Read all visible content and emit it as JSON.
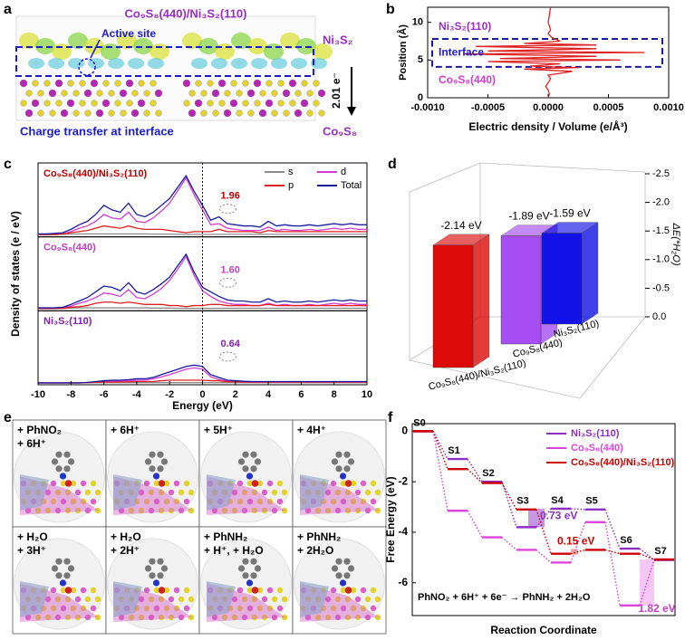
{
  "panel_a": {
    "panel": "a",
    "title": "Co₉S₈(440)/Ni₃S₂(110)",
    "active_site": "Active site",
    "top_phase": "Ni₃S₂",
    "transfer": "2.01 e⁻",
    "bottom_phase": "Co₉S₈",
    "caption": "Charge transfer at interface"
  },
  "panel_e": {
    "panel": "e",
    "steps": [
      [
        "+ PhNO₂",
        "+ 6H⁺"
      ],
      [
        "+ 6H⁺"
      ],
      [
        "+ 5H⁺"
      ],
      [
        "+ 4H⁺"
      ],
      [
        "+ H₂O",
        "+ 3H⁺"
      ],
      [
        "+ H₂O",
        "+ 2H⁺"
      ],
      [
        "+ PhNH₂",
        "+ H⁺, + H₂O"
      ],
      [
        "+ PhNH₂",
        "+ 2H₂O"
      ]
    ]
  },
  "chart_data": [
    {
      "type": "profile",
      "panel": "b",
      "xlabel": "Electric density / Volume (e/Å³)",
      "ylabel": "Position (Å)",
      "xlim": [
        -0.001,
        0.001
      ],
      "xticks": [
        {
          "value": -0.001,
          "label": "-0.0010"
        },
        {
          "value": -0.0005,
          "label": "-0.0005"
        },
        {
          "value": 0,
          "label": "0.0000"
        },
        {
          "value": 0.0005,
          "label": "0.0005"
        },
        {
          "value": 0.001,
          "label": "0.0010"
        }
      ],
      "ylim": [
        0,
        12
      ],
      "yticks": [
        0,
        5,
        10
      ],
      "y": [
        0,
        0.5,
        1,
        1.5,
        2,
        2.5,
        3,
        3.5,
        3.8,
        4,
        4.2,
        4.5,
        4.8,
        5,
        5.2,
        5.5,
        5.8,
        6,
        6.2,
        6.5,
        6.8,
        7,
        7.2,
        7.5,
        8,
        8.5,
        9,
        10,
        11,
        12
      ],
      "series": [
        {
          "color": "#e02020",
          "values": [
            0,
            1e-05,
            0,
            -2e-05,
            0,
            2e-05,
            0,
            0.0002,
            -0.0002,
            0.00025,
            -0.00015,
            0.0001,
            -0.0005,
            0.0006,
            -0.0004,
            0.0004,
            -0.0007,
            0.0008,
            -0.0005,
            0.0004,
            -0.0006,
            0.0004,
            -0.0002,
            0.0001,
            3e-05,
            0,
            2e-05,
            0,
            1e-05,
            2e-05
          ]
        }
      ],
      "annotations": [
        "Ni₃S₂(110)",
        "Interface",
        "Co₉S₈(440)"
      ]
    },
    {
      "type": "dos",
      "panel": "c",
      "xlabel": "Energy (eV)",
      "ylabel": "Density of states (e / eV)",
      "xlim": [
        -10,
        10
      ],
      "xticks": [
        -10,
        -8,
        -6,
        -4,
        -2,
        0,
        2,
        4,
        6,
        8,
        10
      ],
      "x": [
        -10,
        -9.5,
        -9,
        -8.5,
        -8,
        -7.5,
        -7,
        -6.5,
        -6,
        -5.5,
        -5,
        -4.5,
        -4,
        -3.5,
        -3,
        -2.5,
        -2,
        -1.5,
        -1,
        -0.5,
        0,
        0.5,
        1,
        1.5,
        2,
        2.5,
        3,
        3.5,
        4,
        4.5,
        5,
        5.5,
        6,
        6.5,
        7,
        7.5,
        8,
        8.5,
        9,
        9.5,
        10
      ],
      "series": [
        {
          "name": "s",
          "color": "#8c8c8c"
        },
        {
          "name": "d",
          "color": "#d23cd2"
        },
        {
          "name": "p",
          "color": "#e02020"
        },
        {
          "name": "Total",
          "color": "#1a1aa0"
        }
      ],
      "subplots": [
        {
          "title": "Co₉S₈(440)/Ni₃S₂(110)",
          "annotation": "1.96",
          "ylim": [
            0,
            6
          ],
          "values": [
            [
              0.02,
              0.02,
              0.03,
              0.05,
              0.08,
              0.1,
              0.1,
              0.1,
              0.1,
              0.1,
              0.1,
              0.1,
              0.1,
              0.1,
              0.08,
              0.08,
              0.08,
              0.06,
              0.05,
              0.05,
              0.05,
              0.05,
              0.06,
              0.06,
              0.06,
              0.06,
              0.06,
              0.06,
              0.06,
              0.06,
              0.06,
              0.06,
              0.06,
              0.06,
              0.06,
              0.06,
              0.06,
              0.06,
              0.06,
              0.06,
              0.06
            ],
            [
              0.05,
              0.05,
              0.1,
              0.1,
              0.3,
              0.6,
              0.8,
              1.2,
              1.8,
              1.5,
              1.4,
              2.0,
              1.2,
              1.1,
              1.5,
              2.1,
              2.8,
              3.9,
              5.0,
              3.5,
              2.2,
              0.9,
              1.0,
              0.6,
              0.5,
              0.4,
              0.4,
              0.4,
              0.7,
              0.4,
              0.5,
              0.4,
              0.4,
              0.5,
              0.4,
              0.5,
              0.6,
              0.5,
              0.6,
              0.5,
              0.5
            ],
            [
              0.05,
              0.05,
              0.05,
              0.1,
              0.2,
              0.3,
              0.4,
              0.6,
              0.8,
              0.7,
              0.6,
              0.8,
              0.6,
              0.5,
              0.5,
              0.5,
              0.4,
              0.3,
              0.2,
              0.3,
              0.3,
              0.3,
              0.5,
              0.3,
              0.3,
              0.3,
              0.3,
              0.2,
              0.4,
              0.3,
              0.3,
              0.3,
              0.3,
              0.3,
              0.3,
              0.3,
              0.3,
              0.3,
              0.3,
              0.3,
              0.3
            ],
            [
              0.1,
              0.1,
              0.15,
              0.2,
              0.5,
              0.9,
              1.2,
              1.8,
              2.6,
              2.2,
              2.0,
              2.8,
              1.8,
              1.6,
              2.0,
              2.6,
              3.2,
              4.2,
              5.2,
              3.8,
              2.6,
              1.3,
              1.6,
              1.0,
              0.9,
              0.8,
              0.8,
              0.7,
              1.2,
              0.8,
              0.9,
              0.8,
              0.8,
              0.9,
              0.8,
              0.9,
              1.0,
              0.9,
              1.0,
              0.9,
              0.9
            ]
          ]
        },
        {
          "title": "Co₉S₈(440)",
          "annotation": "1.60",
          "ylim": [
            0,
            6
          ],
          "values": [
            [
              0.02,
              0.02,
              0.03,
              0.05,
              0.08,
              0.1,
              0.1,
              0.1,
              0.1,
              0.1,
              0.1,
              0.1,
              0.1,
              0.1,
              0.08,
              0.08,
              0.08,
              0.06,
              0.05,
              0.05,
              0.05,
              0.05,
              0.06,
              0.06,
              0.06,
              0.06,
              0.06,
              0.06,
              0.06,
              0.06,
              0.06,
              0.06,
              0.06,
              0.06,
              0.06,
              0.06,
              0.06,
              0.06,
              0.06,
              0.06,
              0.06
            ],
            [
              0.05,
              0.05,
              0.05,
              0.1,
              0.25,
              0.5,
              0.7,
              1.0,
              1.4,
              1.3,
              1.1,
              1.7,
              1.0,
              0.9,
              1.3,
              1.8,
              2.5,
              3.5,
              4.6,
              2.9,
              1.6,
              1.1,
              0.7,
              0.5,
              0.4,
              0.4,
              0.3,
              0.3,
              0.5,
              0.3,
              0.4,
              0.3,
              0.3,
              0.4,
              0.3,
              0.4,
              0.5,
              0.4,
              0.5,
              0.4,
              0.4
            ],
            [
              0.05,
              0.05,
              0.05,
              0.05,
              0.15,
              0.2,
              0.3,
              0.5,
              0.6,
              0.6,
              0.5,
              0.6,
              0.5,
              0.4,
              0.4,
              0.4,
              0.3,
              0.3,
              0.2,
              0.3,
              0.3,
              0.4,
              0.4,
              0.3,
              0.3,
              0.3,
              0.3,
              0.3,
              0.4,
              0.3,
              0.3,
              0.3,
              0.3,
              0.3,
              0.3,
              0.3,
              0.3,
              0.3,
              0.3,
              0.3,
              0.3
            ],
            [
              0.1,
              0.1,
              0.1,
              0.15,
              0.4,
              0.7,
              1.0,
              1.5,
              2.0,
              1.9,
              1.6,
              2.3,
              1.5,
              1.3,
              1.7,
              2.2,
              2.8,
              3.8,
              4.8,
              3.2,
              1.9,
              1.5,
              1.1,
              0.8,
              0.7,
              0.7,
              0.6,
              0.6,
              0.9,
              0.6,
              0.7,
              0.6,
              0.6,
              0.7,
              0.6,
              0.7,
              0.8,
              0.7,
              0.8,
              0.7,
              0.7
            ]
          ]
        },
        {
          "title": "Ni₃S₂(110)",
          "annotation": "0.64",
          "ylim": [
            0,
            2.5
          ],
          "values": [
            [
              0.01,
              0.01,
              0.01,
              0.01,
              0.01,
              0.01,
              0.01,
              0.01,
              0.01,
              0.01,
              0.01,
              0.01,
              0.01,
              0.01,
              0.01,
              0.01,
              0.01,
              0.01,
              0.01,
              0.01,
              0.01,
              0.01,
              0.01,
              0.01,
              0.01,
              0.01,
              0.01,
              0.01,
              0.01,
              0.01,
              0.01,
              0.01,
              0.01,
              0.01,
              0.01,
              0.01,
              0.01,
              0.01,
              0.01,
              0.01,
              0.01
            ],
            [
              0,
              0,
              0,
              0,
              0,
              0,
              0.01,
              0.03,
              0.05,
              0.07,
              0.07,
              0.08,
              0.1,
              0.1,
              0.15,
              0.22,
              0.3,
              0.4,
              0.5,
              0.55,
              0.5,
              0.22,
              0.12,
              0.06,
              0.04,
              0.03,
              0.02,
              0.02,
              0.02,
              0.02,
              0.02,
              0.02,
              0.02,
              0.02,
              0.02,
              0.02,
              0.02,
              0.02,
              0.02,
              0.02,
              0.02
            ],
            [
              0,
              0,
              0,
              0,
              0,
              0,
              0.01,
              0.02,
              0.03,
              0.03,
              0.03,
              0.04,
              0.05,
              0.05,
              0.05,
              0.08,
              0.1,
              0.1,
              0.1,
              0.1,
              0.1,
              0.08,
              0.08,
              0.04,
              0.04,
              0.03,
              0.03,
              0.03,
              0.03,
              0.03,
              0.03,
              0.03,
              0.03,
              0.03,
              0.03,
              0.03,
              0.03,
              0.03,
              0.03,
              0.03,
              0.03
            ],
            [
              0,
              0,
              0,
              0,
              0,
              0,
              0.02,
              0.05,
              0.08,
              0.1,
              0.1,
              0.12,
              0.15,
              0.15,
              0.2,
              0.3,
              0.4,
              0.5,
              0.6,
              0.65,
              0.6,
              0.3,
              0.2,
              0.1,
              0.08,
              0.06,
              0.05,
              0.05,
              0.05,
              0.05,
              0.05,
              0.05,
              0.05,
              0.05,
              0.05,
              0.05,
              0.05,
              0.05,
              0.05,
              0.05,
              0.05
            ]
          ]
        }
      ]
    },
    {
      "type": "bar3d",
      "panel": "d",
      "ylabel": "ΔE(*H₂O)",
      "categories": [
        "Co₉S₈(440)/Ni₃S₂(110)",
        "Co₉S₈(440)",
        "Ni₃S₂(110)"
      ],
      "values": [
        -2.14,
        -1.89,
        -1.59
      ],
      "value_labels": [
        "-2.14 eV",
        "-1.89 eV",
        "-1.59 eV"
      ],
      "colors": [
        "#dd0a0a",
        "#a64ef2",
        "#1212e6"
      ],
      "ylim": [
        0,
        -2.5
      ],
      "yticks": [
        {
          "value": 0,
          "label": "0.0"
        },
        -0.5,
        {
          "value": -1,
          "label": "-1.0"
        },
        -1.5,
        {
          "value": -2,
          "label": "-2.0"
        },
        -2.5
      ]
    },
    {
      "type": "energy-levels",
      "panel": "f",
      "xlabel": "Reaction Coordinate",
      "ylabel": "Free Energy (eV)",
      "states": [
        "S0",
        "S1",
        "S2",
        "S3",
        "S4",
        "S5",
        "S6",
        "S7"
      ],
      "series": [
        {
          "name": "Ni₃S₂(110)",
          "color": "#8e2fc4",
          "values": [
            0,
            -1.1,
            -2.0,
            -3.8,
            -3.07,
            -3.1,
            -4.65,
            -5.1
          ]
        },
        {
          "name": "Co₉S₈(440)",
          "color": "#dd44dd",
          "values": [
            0,
            -3.15,
            -4.2,
            -4.7,
            -5.2,
            -3.6,
            -6.9,
            -5.08
          ]
        },
        {
          "name": "Co₉S₈(440)/Ni₃S₂(110)",
          "color": "#cc0000",
          "values": [
            0,
            -1.5,
            -2.05,
            -3.1,
            -4.85,
            -4.7,
            -4.85,
            -5.08
          ]
        }
      ],
      "ylim": [
        -7.3,
        0.3
      ],
      "yticks": [
        0,
        -2,
        -4,
        -6
      ],
      "annotations": [
        "0.73 eV",
        "0.15 eV",
        "1.82 eV"
      ],
      "equation": "PhNO₂ + 6H⁺ + 6e⁻ → PhNH₂ + 2H₂O"
    }
  ]
}
